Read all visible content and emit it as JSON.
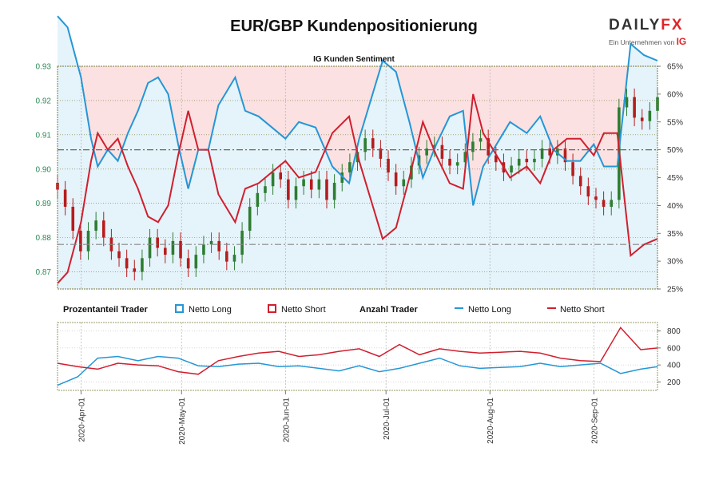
{
  "title": "EUR/GBP Kundenpositionierung",
  "logo": {
    "brand_main": "DAILY",
    "brand_accent": "FX",
    "tagline": "Ein Unternehmen von",
    "tagline_mark": "IG"
  },
  "colors": {
    "long": "#2596d6",
    "short": "#d01f2e",
    "bg_long": "#e5f3fa",
    "bg_short": "#fbe1e2",
    "candle_up": "#2e7d32",
    "candle_down": "#b71c1c",
    "left_axis": "#2e8b57"
  },
  "legend": {
    "pct_title": "Prozentanteil Trader",
    "pct_long": "Netto Long",
    "pct_short": "Netto Short",
    "count_title": "Anzahl Trader",
    "count_long": "Netto Long",
    "count_short": "Netto Short"
  },
  "chart_data": [
    {
      "type": "line",
      "title": "IG Kunden Sentiment",
      "x_range": [
        "2020-03-25",
        "2020-09-20"
      ],
      "x_ticks": [
        "2020-Apr-01",
        "2020-May-01",
        "2020-Jun-01",
        "2020-Jul-01",
        "2020-Aug-01",
        "2020-Sep-01"
      ],
      "price_axis": {
        "ylim": [
          0.865,
          0.93
        ],
        "ticks": [
          "0.87",
          "0.88",
          "0.89",
          "0.90",
          "0.91",
          "0.92",
          "0.93"
        ]
      },
      "pct_axis": {
        "ylim": [
          25,
          65
        ],
        "ticks": [
          "25%",
          "30%",
          "35%",
          "40%",
          "45%",
          "50%",
          "55%",
          "60%",
          "65%"
        ]
      },
      "reference_lines": {
        "pct": 50,
        "price": 0.878
      },
      "series": [
        {
          "name": "Netto Long",
          "axis": "pct",
          "x": [
            "2020-03-25",
            "2020-03-28",
            "2020-04-01",
            "2020-04-04",
            "2020-04-06",
            "2020-04-09",
            "2020-04-12",
            "2020-04-15",
            "2020-04-18",
            "2020-04-21",
            "2020-04-24",
            "2020-04-27",
            "2020-04-30",
            "2020-05-03",
            "2020-05-06",
            "2020-05-09",
            "2020-05-12",
            "2020-05-14",
            "2020-05-17",
            "2020-05-20",
            "2020-05-24",
            "2020-05-28",
            "2020-06-01",
            "2020-06-05",
            "2020-06-10",
            "2020-06-15",
            "2020-06-20",
            "2020-06-23",
            "2020-06-26",
            "2020-06-30",
            "2020-07-04",
            "2020-07-08",
            "2020-07-12",
            "2020-07-16",
            "2020-07-20",
            "2020-07-24",
            "2020-07-27",
            "2020-07-30",
            "2020-08-03",
            "2020-08-07",
            "2020-08-12",
            "2020-08-16",
            "2020-08-20",
            "2020-08-24",
            "2020-08-28",
            "2020-09-01",
            "2020-09-04",
            "2020-09-08",
            "2020-09-12",
            "2020-09-16",
            "2020-09-20"
          ],
          "values": [
            74,
            72,
            63,
            52,
            47,
            50,
            48,
            53,
            57,
            62,
            63,
            60,
            51,
            43,
            50,
            50,
            58,
            60,
            63,
            57,
            56,
            54,
            52,
            55,
            54,
            47,
            44,
            52,
            58,
            66,
            64,
            55,
            45,
            51,
            56,
            57,
            40,
            47,
            51,
            55,
            53,
            56,
            50,
            48,
            48,
            51,
            47,
            47,
            69,
            67,
            66
          ]
        },
        {
          "name": "Netto Short",
          "axis": "pct",
          "x": [
            "2020-03-25",
            "2020-03-28",
            "2020-04-01",
            "2020-04-04",
            "2020-04-06",
            "2020-04-09",
            "2020-04-12",
            "2020-04-15",
            "2020-04-18",
            "2020-04-21",
            "2020-04-24",
            "2020-04-27",
            "2020-04-30",
            "2020-05-03",
            "2020-05-06",
            "2020-05-09",
            "2020-05-12",
            "2020-05-14",
            "2020-05-17",
            "2020-05-20",
            "2020-05-24",
            "2020-05-28",
            "2020-06-01",
            "2020-06-05",
            "2020-06-10",
            "2020-06-15",
            "2020-06-20",
            "2020-06-23",
            "2020-06-26",
            "2020-06-30",
            "2020-07-04",
            "2020-07-08",
            "2020-07-12",
            "2020-07-16",
            "2020-07-20",
            "2020-07-24",
            "2020-07-27",
            "2020-07-30",
            "2020-08-03",
            "2020-08-07",
            "2020-08-12",
            "2020-08-16",
            "2020-08-20",
            "2020-08-24",
            "2020-08-28",
            "2020-09-01",
            "2020-09-04",
            "2020-09-08",
            "2020-09-12",
            "2020-09-16",
            "2020-09-20"
          ],
          "values": [
            26,
            28,
            37,
            48,
            53,
            50,
            52,
            47,
            43,
            38,
            37,
            40,
            49,
            57,
            50,
            50,
            42,
            40,
            37,
            43,
            44,
            46,
            48,
            45,
            46,
            53,
            56,
            48,
            42,
            34,
            36,
            45,
            55,
            49,
            44,
            43,
            60,
            53,
            49,
            45,
            47,
            44,
            50,
            52,
            52,
            49,
            53,
            53,
            31,
            33,
            34
          ]
        },
        {
          "name": "Netto Long",
          "axis": "count",
          "ylim": [
            100,
            900
          ],
          "ticks": [
            "200",
            "400",
            "600",
            "800"
          ],
          "x": [
            "2020-03-25",
            "2020-03-31",
            "2020-04-06",
            "2020-04-12",
            "2020-04-18",
            "2020-04-24",
            "2020-04-30",
            "2020-05-06",
            "2020-05-12",
            "2020-05-18",
            "2020-05-24",
            "2020-05-30",
            "2020-06-05",
            "2020-06-11",
            "2020-06-17",
            "2020-06-23",
            "2020-06-29",
            "2020-07-05",
            "2020-07-11",
            "2020-07-17",
            "2020-07-23",
            "2020-07-29",
            "2020-08-04",
            "2020-08-10",
            "2020-08-16",
            "2020-08-22",
            "2020-08-28",
            "2020-09-03",
            "2020-09-09",
            "2020-09-15",
            "2020-09-20"
          ],
          "values": [
            160,
            260,
            480,
            500,
            450,
            500,
            480,
            390,
            380,
            410,
            420,
            380,
            390,
            360,
            330,
            390,
            320,
            360,
            420,
            480,
            390,
            360,
            370,
            380,
            420,
            380,
            400,
            420,
            300,
            350,
            380
          ]
        },
        {
          "name": "Netto Short",
          "axis": "count",
          "x": [
            "2020-03-25",
            "2020-03-31",
            "2020-04-06",
            "2020-04-12",
            "2020-04-18",
            "2020-04-24",
            "2020-04-30",
            "2020-05-06",
            "2020-05-12",
            "2020-05-18",
            "2020-05-24",
            "2020-05-30",
            "2020-06-05",
            "2020-06-11",
            "2020-06-17",
            "2020-06-23",
            "2020-06-29",
            "2020-07-05",
            "2020-07-11",
            "2020-07-17",
            "2020-07-23",
            "2020-07-29",
            "2020-08-04",
            "2020-08-10",
            "2020-08-16",
            "2020-08-22",
            "2020-08-28",
            "2020-09-03",
            "2020-09-09",
            "2020-09-15",
            "2020-09-20"
          ],
          "values": [
            420,
            380,
            350,
            420,
            400,
            390,
            320,
            290,
            450,
            500,
            540,
            560,
            500,
            520,
            560,
            590,
            500,
            640,
            520,
            590,
            560,
            540,
            550,
            560,
            540,
            480,
            450,
            440,
            840,
            580,
            600
          ]
        }
      ],
      "price_candles": {
        "x_range": [
          "2020-03-25",
          "2020-09-20"
        ],
        "close": [
          0.894,
          0.889,
          0.882,
          0.876,
          0.882,
          0.885,
          0.88,
          0.876,
          0.874,
          0.871,
          0.87,
          0.874,
          0.88,
          0.877,
          0.875,
          0.879,
          0.874,
          0.871,
          0.875,
          0.878,
          0.879,
          0.876,
          0.873,
          0.875,
          0.882,
          0.889,
          0.893,
          0.895,
          0.899,
          0.897,
          0.891,
          0.895,
          0.897,
          0.894,
          0.897,
          0.891,
          0.896,
          0.899,
          0.902,
          0.905,
          0.909,
          0.906,
          0.903,
          0.899,
          0.895,
          0.897,
          0.901,
          0.904,
          0.906,
          0.907,
          0.903,
          0.901,
          0.902,
          0.905,
          0.908,
          0.909,
          0.904,
          0.902,
          0.899,
          0.901,
          0.903,
          0.902,
          0.903,
          0.906,
          0.904,
          0.906,
          0.902,
          0.898,
          0.895,
          0.892,
          0.891,
          0.889,
          0.891,
          0.918,
          0.921,
          0.915,
          0.914,
          0.917,
          0.921
        ]
      }
    }
  ]
}
